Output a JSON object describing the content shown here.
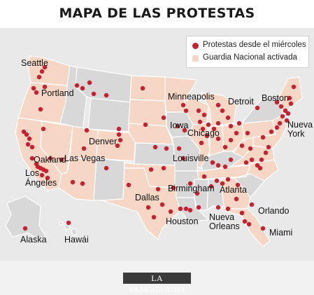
{
  "title": "MAPA DE LAS PROTESTAS",
  "legend": {
    "protests_label": "Protestas desde el miércoles",
    "guard_label": "Guardia Nacional activada"
  },
  "colors": {
    "protest_dot": "#c8202f",
    "guard_state": "#f6d7c6",
    "other_state": "#d8d8d8",
    "border": "#ffffff"
  },
  "cities": {
    "seattle": "Seattle",
    "portland": "Portland",
    "oakland": "Oakland",
    "los_angeles_1": "Los",
    "los_angeles_2": "Ángeles",
    "las_vegas": "Las Vegas",
    "denver": "Denver",
    "minneapolis": "Minneapolis",
    "iowa": "Iowa",
    "chicago": "Chicago",
    "detroit": "Detroit",
    "boston": "Boston",
    "nueva_york_1": "Nueva",
    "nueva_york_2": "York",
    "louisville": "Louisville",
    "dallas": "Dallas",
    "birmingham": "Birmingham",
    "atlanta": "Atlanta",
    "houston": "Houston",
    "nueva_orleans_1": "Nueva",
    "nueva_orleans_2": "Orleans",
    "orlando": "Orlando",
    "miami": "Miami",
    "alaska": "Alaska",
    "hawaii": "Hawái"
  },
  "brand": "LA VANGUARDIA"
}
